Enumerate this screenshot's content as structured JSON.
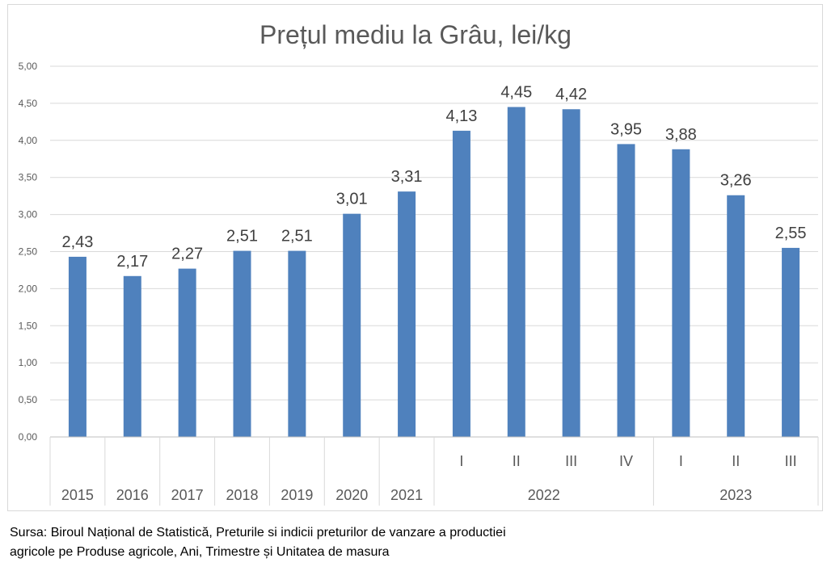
{
  "chart_data": {
    "type": "bar",
    "title": "Prețul mediu la Grâu, lei/kg",
    "xlabel": "",
    "ylabel": "",
    "ylim": [
      0,
      5
    ],
    "y_ticks": [
      "0,00",
      "0,50",
      "1,00",
      "1,50",
      "2,00",
      "2,50",
      "3,00",
      "3,50",
      "4,00",
      "4,50",
      "5,00"
    ],
    "grid": true,
    "legend": "none",
    "bar_color": "#4f81bd",
    "categories": [
      "2015",
      "2016",
      "2017",
      "2018",
      "2019",
      "2020",
      "2021",
      "2022 I",
      "2022 II",
      "2022 III",
      "2022 IV",
      "2023 I",
      "2023 II",
      "2023 III"
    ],
    "values": [
      2.43,
      2.17,
      2.27,
      2.51,
      2.51,
      3.01,
      3.31,
      4.13,
      4.45,
      4.42,
      3.95,
      3.88,
      3.26,
      2.55
    ],
    "value_labels": [
      "2,43",
      "2,17",
      "2,27",
      "2,51",
      "2,51",
      "3,01",
      "3,31",
      "4,13",
      "4,45",
      "4,42",
      "3,95",
      "3,88",
      "3,26",
      "2,55"
    ],
    "x_axis": {
      "inner_labels": [
        "",
        "",
        "",
        "",
        "",
        "",
        "",
        "I",
        "II",
        "III",
        "IV",
        "I",
        "II",
        "III"
      ],
      "groups": [
        {
          "label": "2015",
          "span": 1
        },
        {
          "label": "2016",
          "span": 1
        },
        {
          "label": "2017",
          "span": 1
        },
        {
          "label": "2018",
          "span": 1
        },
        {
          "label": "2019",
          "span": 1
        },
        {
          "label": "2020",
          "span": 1
        },
        {
          "label": "2021",
          "span": 1
        },
        {
          "label": "2022",
          "span": 4
        },
        {
          "label": "2023",
          "span": 3
        }
      ]
    }
  },
  "source": {
    "line1": "Sursa: Biroul Național de Statistică, Preturile si indicii preturilor de vanzare a productiei",
    "line2": "agricole pe Produse agricole, Ani, Trimestre și Unitatea de masura"
  }
}
